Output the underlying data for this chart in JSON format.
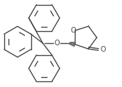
{
  "background": "#ffffff",
  "line_color": "#444444",
  "line_width": 1.0,
  "fig_width": 1.72,
  "fig_height": 1.23,
  "dpi": 100,
  "xlim": [
    0,
    172
  ],
  "ylim": [
    0,
    123
  ]
}
